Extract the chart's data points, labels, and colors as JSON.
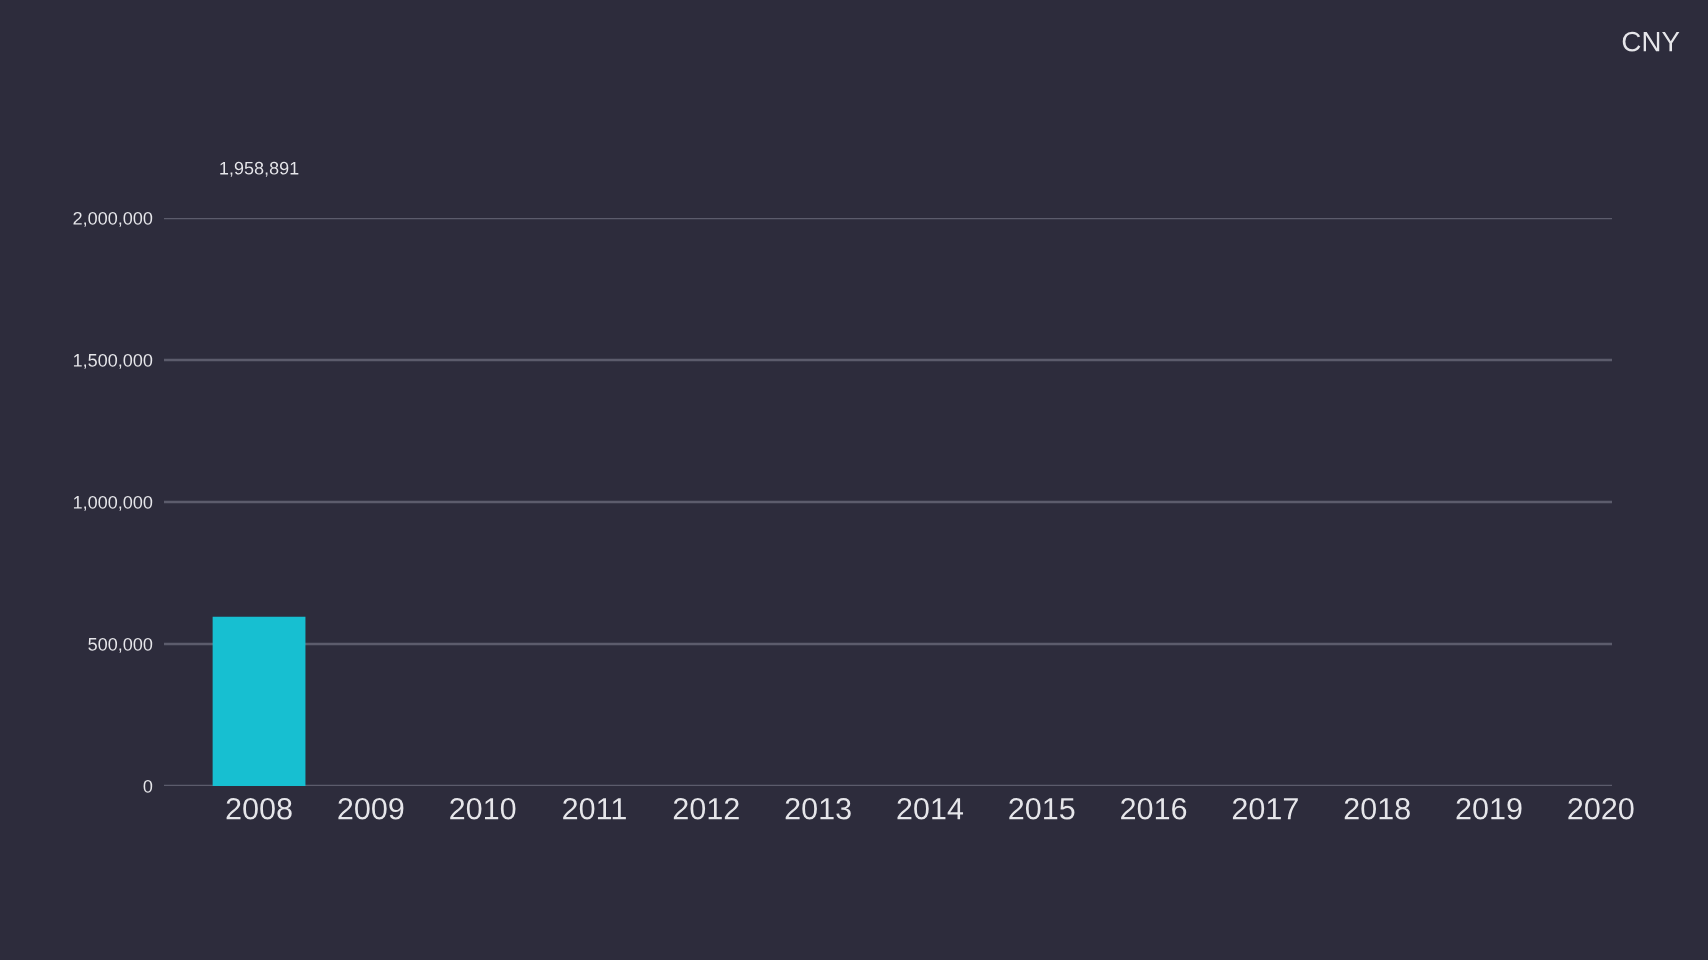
{
  "chart_data": {
    "type": "bar",
    "categories": [
      "2008",
      "2009",
      "2010",
      "2011",
      "2012",
      "2013",
      "2014",
      "2015",
      "2016",
      "2017",
      "2018",
      "2019",
      "2020"
    ],
    "values": [
      596000,
      null,
      null,
      null,
      null,
      null,
      null,
      null,
      null,
      null,
      null,
      null,
      null
    ],
    "color": "#17bfd1",
    "ylim": [
      0,
      2000000
    ],
    "yticks": [
      {
        "value": 0,
        "label": "0"
      },
      {
        "value": 500000,
        "label": "500,000"
      },
      {
        "value": 1000000,
        "label": "1,000,000"
      },
      {
        "value": 1500000,
        "label": "1,500,000"
      },
      {
        "value": 2000000,
        "label": "2,000,000"
      }
    ],
    "grid": "y",
    "annotations": [
      "1,958,891",
      "CNY"
    ]
  }
}
